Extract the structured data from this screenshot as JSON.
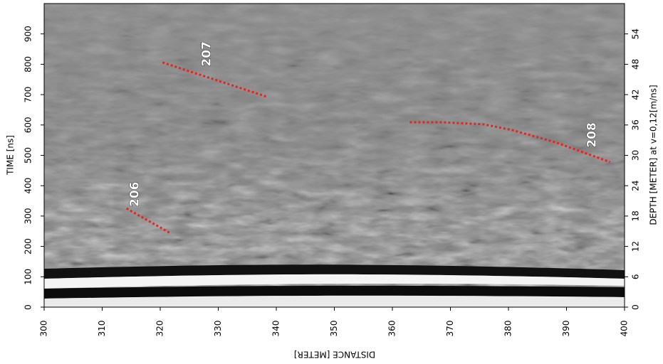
{
  "chart_data": {
    "type": "line",
    "x_label": "DISTANCE [METER]",
    "y_label": "TIME [ns]",
    "y2_label": "DEPTH [METER] at v=0,12[m/ns]",
    "xlim": [
      300,
      400
    ],
    "xticks": [
      300,
      310,
      320,
      330,
      340,
      350,
      360,
      370,
      380,
      390,
      400
    ],
    "ylim": [
      0,
      1000
    ],
    "yticks": [
      0,
      100,
      200,
      300,
      400,
      500,
      600,
      700,
      800,
      900
    ],
    "y2lim": [
      0,
      60
    ],
    "y2ticks": [
      0,
      6,
      12,
      18,
      24,
      30,
      36,
      42,
      48,
      54
    ],
    "series": [
      {
        "name": "206",
        "color": "#e8231a",
        "x": [
          314.2,
          321.8
        ],
        "values": [
          325,
          243
        ]
      },
      {
        "name": "207",
        "color": "#e8231a",
        "x": [
          320.4,
          338.4
        ],
        "values": [
          806,
          693
        ]
      },
      {
        "name": "208",
        "color": "#e8231a",
        "x": [
          363,
          368.5,
          375.8,
          380.7,
          388.1,
          397.5
        ],
        "values": [
          609,
          609,
          602,
          583,
          543,
          478
        ]
      }
    ]
  }
}
